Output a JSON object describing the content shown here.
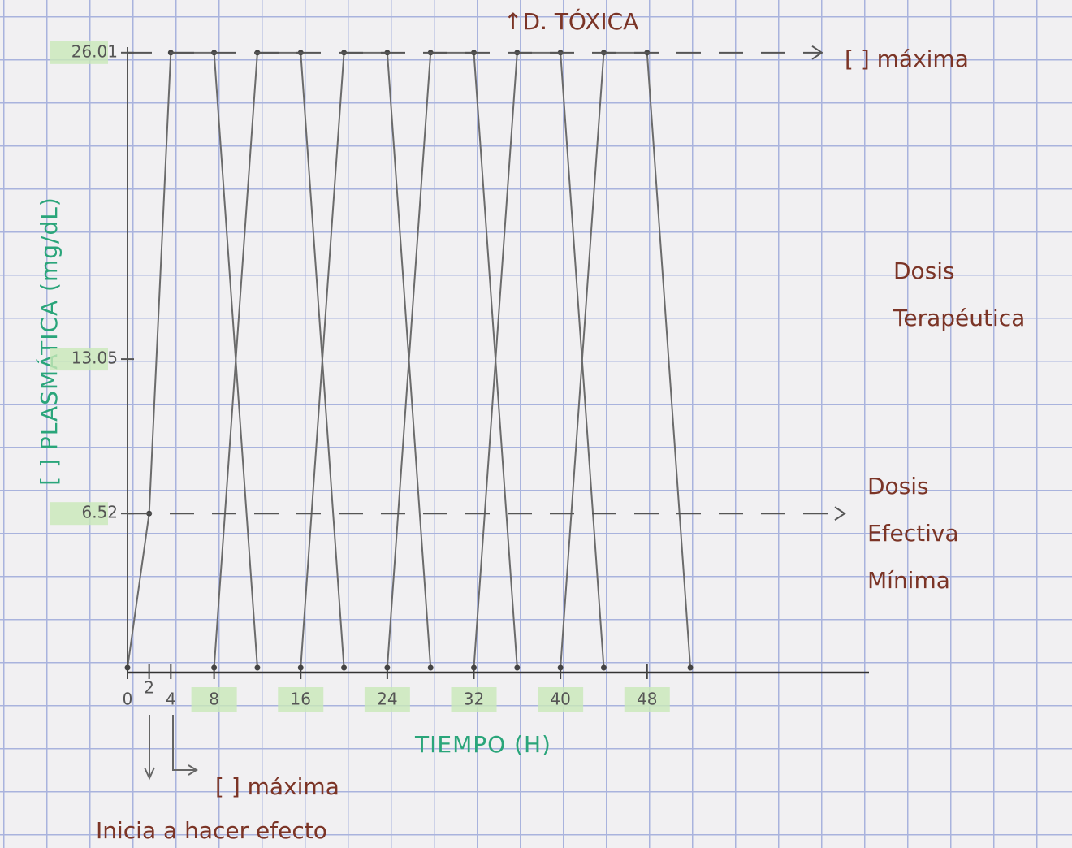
{
  "chart_data": {
    "type": "line",
    "ylabel": "[ ] PLASMÁTICA (mg/dL)",
    "xlabel": "TIEMPO (H)",
    "xlim": [
      0,
      68.5
    ],
    "ylim": [
      0,
      27
    ],
    "xticks": [
      0,
      2,
      4,
      8,
      16,
      24,
      32,
      40,
      48
    ],
    "yticks": [
      6.52,
      13.05,
      26.01
    ],
    "series": [
      {
        "color": "#6b6b6b",
        "x": [
          0,
          2,
          4,
          8,
          12
        ],
        "values": [
          0,
          6.52,
          26.01,
          26.01,
          0
        ]
      },
      {
        "color": "#6b6b6b",
        "x": [
          8,
          12,
          16,
          20
        ],
        "values": [
          0,
          26.01,
          26.01,
          0
        ]
      },
      {
        "color": "#6b6b6b",
        "x": [
          16,
          20,
          24,
          28
        ],
        "values": [
          0,
          26.01,
          26.01,
          0
        ]
      },
      {
        "color": "#6b6b6b",
        "x": [
          24,
          28,
          32,
          36
        ],
        "values": [
          0,
          26.01,
          26.01,
          0
        ]
      },
      {
        "color": "#6b6b6b",
        "x": [
          32,
          36,
          40,
          44
        ],
        "values": [
          0,
          26.01,
          26.01,
          0
        ]
      },
      {
        "color": "#6b6b6b",
        "x": [
          40,
          44,
          48,
          52
        ],
        "values": [
          0,
          26.01,
          26.01,
          0
        ]
      }
    ],
    "annotations": [
      {
        "text": "↑D. TÓXICA"
      },
      {
        "text": "[ ] máxima",
        "y": 26.01
      },
      {
        "lines": [
          "Dosis",
          "Terapéutica"
        ]
      },
      {
        "lines": [
          "Dosis",
          "Efectiva",
          "Mínima"
        ],
        "y": 6.52
      },
      {
        "text": "[ ] máxima"
      },
      {
        "text": "Inicia a hacer efecto"
      }
    ]
  }
}
